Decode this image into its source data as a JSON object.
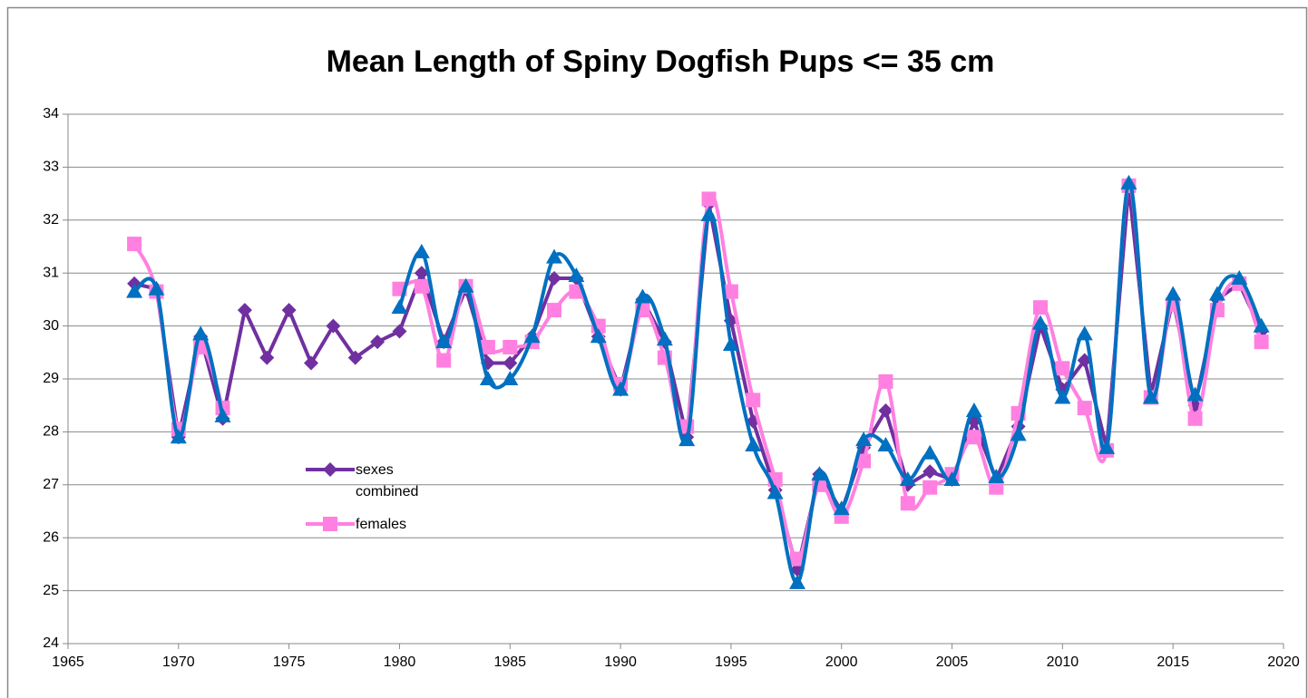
{
  "chart_data": {
    "type": "line",
    "title": "Mean Length of Spiny Dogfish Pups <= 35 cm",
    "x": [
      1968,
      1969,
      1970,
      1971,
      1972,
      1973,
      1974,
      1975,
      1976,
      1977,
      1978,
      1979,
      1980,
      1981,
      1982,
      1983,
      1984,
      1985,
      1986,
      1987,
      1988,
      1989,
      1990,
      1991,
      1992,
      1993,
      1994,
      1995,
      1996,
      1997,
      1998,
      1999,
      2000,
      2001,
      2002,
      2003,
      2004,
      2005,
      2006,
      2007,
      2008,
      2009,
      2010,
      2011,
      2012,
      2013,
      2014,
      2015,
      2016,
      2017,
      2018,
      2019
    ],
    "series": [
      {
        "name": "sexes combined",
        "color": "#7030a0",
        "marker": "diamond",
        "smooth": false,
        "values": [
          30.8,
          30.7,
          27.9,
          29.8,
          28.25,
          30.3,
          29.4,
          30.3,
          29.3,
          30.0,
          29.4,
          29.7,
          29.9,
          31.0,
          29.7,
          30.7,
          29.3,
          29.3,
          29.8,
          30.9,
          30.9,
          29.8,
          28.8,
          30.5,
          29.7,
          27.9,
          32.3,
          30.1,
          28.2,
          26.9,
          25.4,
          27.2,
          26.5,
          27.7,
          28.4,
          27.0,
          27.25,
          27.1,
          28.2,
          27.1,
          28.1,
          30.0,
          28.8,
          29.35,
          27.7,
          32.65,
          28.7,
          30.5,
          28.5,
          30.5,
          30.8,
          29.9
        ]
      },
      {
        "name": "females",
        "color": "#ff80e0",
        "marker": "square",
        "smooth": true,
        "values": [
          31.55,
          30.65,
          28.05,
          29.6,
          28.45,
          null,
          null,
          null,
          null,
          null,
          null,
          null,
          30.7,
          30.75,
          29.35,
          30.75,
          29.6,
          29.6,
          29.7,
          30.3,
          30.65,
          30.0,
          28.9,
          30.3,
          29.4,
          28.1,
          32.4,
          30.65,
          28.6,
          27.1,
          25.6,
          27.0,
          26.4,
          27.45,
          28.95,
          26.65,
          26.95,
          27.2,
          27.9,
          26.95,
          28.35,
          30.35,
          29.2,
          28.45,
          27.65,
          32.65,
          28.65,
          30.4,
          28.25,
          30.3,
          30.8,
          29.7
        ]
      },
      {
        "color": "#0070c0",
        "marker": "triangle",
        "smooth": true,
        "values": [
          30.65,
          30.7,
          27.9,
          29.85,
          28.3,
          null,
          null,
          null,
          null,
          null,
          null,
          null,
          30.35,
          31.4,
          29.7,
          30.75,
          29.0,
          29.0,
          29.8,
          31.3,
          30.95,
          29.8,
          28.8,
          30.55,
          29.75,
          27.85,
          32.1,
          29.65,
          27.75,
          26.85,
          25.15,
          27.2,
          26.55,
          27.85,
          27.75,
          27.1,
          27.6,
          27.1,
          28.4,
          27.15,
          27.95,
          30.05,
          28.65,
          29.85,
          27.7,
          32.7,
          28.65,
          30.6,
          28.7,
          30.6,
          30.9,
          30.0
        ]
      }
    ],
    "xlim": [
      1965,
      2020
    ],
    "xticks": [
      1965,
      1970,
      1975,
      1980,
      1985,
      1990,
      1995,
      2000,
      2005,
      2010,
      2015,
      2020
    ],
    "ylim": [
      24,
      34
    ],
    "yticks": [
      24,
      25,
      26,
      27,
      28,
      29,
      30,
      31,
      32,
      33,
      34
    ],
    "grid": true
  }
}
